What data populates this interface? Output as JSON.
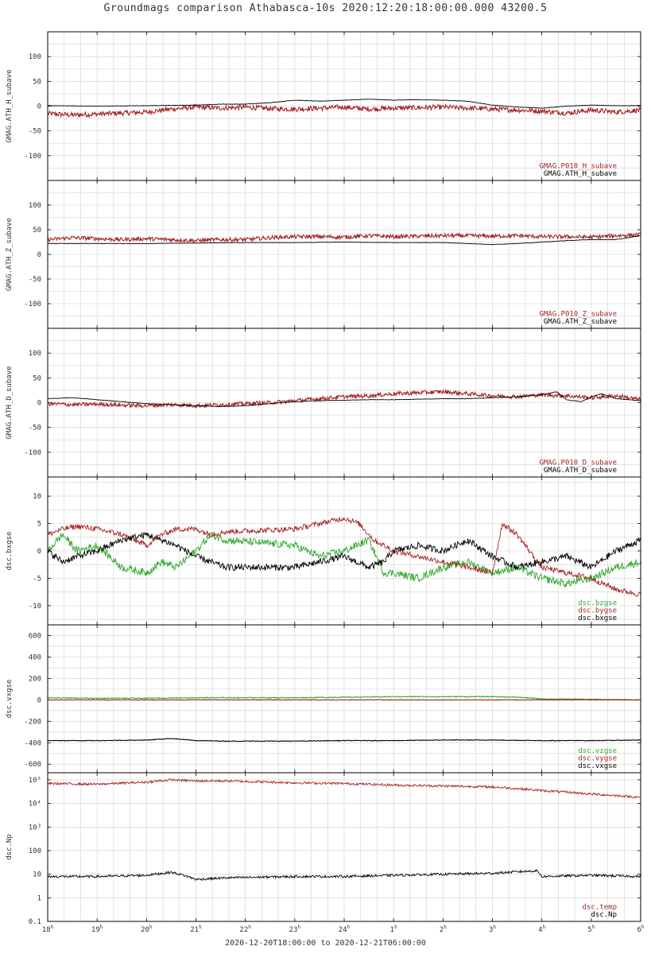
{
  "title": "Groundmags comparison Athabasca-10s 2020:12:20:18:00:00.000 43200.5",
  "footer": "2020-12-20T18:00:00 to 2020-12-21T06:00:00",
  "colors": {
    "black": "#000000",
    "red": "#a52222",
    "green": "#2ea82e",
    "grid": "#d0d0d0"
  },
  "chart_data": [
    {
      "type": "line",
      "ylabel": "GMAG.ATH_H_subave",
      "ylim": [
        -150,
        150
      ],
      "yticks": [
        100,
        50,
        0,
        -50,
        -100
      ],
      "ytick_labels": [
        "100",
        "50",
        "0",
        "-50",
        "-100"
      ],
      "legend_position": "bottom-right",
      "series": [
        {
          "name": "GMAG.P010_H_subave",
          "color": "#a52222",
          "x": [
            18,
            18.5,
            19,
            19.5,
            20,
            20.5,
            21,
            21.5,
            22,
            22.5,
            23,
            23.5,
            24,
            24.5,
            25,
            25.5,
            26,
            26.5,
            27,
            27.5,
            28,
            28.5,
            29,
            29.5,
            30
          ],
          "y": [
            -15,
            -18,
            -16,
            -14,
            -12,
            -6,
            -2,
            -4,
            -2,
            -5,
            -6,
            -4,
            -2,
            -6,
            -4,
            -3,
            -2,
            -4,
            -6,
            -8,
            -10,
            -14,
            -8,
            -12,
            -8
          ],
          "noise": 5
        },
        {
          "name": "GMAG.ATH_H_subave",
          "color": "#000000",
          "x": [
            18,
            19,
            20,
            21,
            21.5,
            22,
            22.5,
            23,
            23.5,
            24,
            24.5,
            25,
            25.5,
            26,
            26.5,
            27,
            27.5,
            28,
            28.5,
            29,
            29.5,
            30
          ],
          "y": [
            1,
            0,
            1,
            2,
            4,
            4,
            7,
            12,
            10,
            12,
            14,
            12,
            13,
            12,
            10,
            2,
            -2,
            -4,
            0,
            2,
            1,
            1
          ],
          "noise": 0.5
        }
      ]
    },
    {
      "type": "line",
      "ylabel": "GMAG.ATH_Z_subave",
      "ylim": [
        -150,
        150
      ],
      "yticks": [
        100,
        50,
        0,
        -50,
        -100
      ],
      "ytick_labels": [
        "100",
        "50",
        "0",
        "-50",
        "-100"
      ],
      "legend_position": "bottom-right",
      "series": [
        {
          "name": "GMAG.P010_Z_subave",
          "color": "#a52222",
          "x": [
            18,
            18.5,
            19,
            19.5,
            20,
            20.5,
            21,
            21.5,
            22,
            22.5,
            23,
            23.5,
            24,
            24.5,
            25,
            25.5,
            26,
            26.5,
            27,
            27.5,
            28,
            28.5,
            29,
            29.5,
            30
          ],
          "y": [
            30,
            34,
            32,
            30,
            32,
            30,
            28,
            30,
            30,
            34,
            36,
            36,
            35,
            38,
            36,
            37,
            38,
            38,
            37,
            38,
            36,
            36,
            35,
            38,
            40
          ],
          "noise": 4
        },
        {
          "name": "GMAG.ATH_Z_subave",
          "color": "#000000",
          "x": [
            18,
            19,
            20,
            21,
            22,
            23,
            24,
            25,
            26,
            26.5,
            27,
            27.5,
            28,
            28.5,
            29,
            29.5,
            30
          ],
          "y": [
            22,
            22,
            22,
            23,
            24,
            24,
            25,
            24,
            24,
            22,
            20,
            22,
            25,
            28,
            30,
            30,
            38
          ],
          "noise": 0.4
        }
      ]
    },
    {
      "type": "line",
      "ylabel": "GMAG.ATH_D_subave",
      "ylim": [
        -150,
        150
      ],
      "yticks": [
        100,
        50,
        0,
        -50,
        -100
      ],
      "ytick_labels": [
        "100",
        "50",
        "0",
        "-50",
        "-100"
      ],
      "legend_position": "bottom-right",
      "series": [
        {
          "name": "GMAG.P010_D_subave",
          "color": "#a52222",
          "x": [
            18,
            18.5,
            19,
            19.5,
            20,
            20.5,
            21,
            21.5,
            22,
            22.5,
            23,
            23.5,
            24,
            24.5,
            25,
            25.5,
            26,
            26.5,
            27,
            27.5,
            28,
            28.5,
            29,
            29.5,
            30
          ],
          "y": [
            -2,
            -4,
            -3,
            -5,
            -6,
            -4,
            -6,
            -4,
            -2,
            0,
            4,
            8,
            12,
            14,
            18,
            20,
            22,
            18,
            14,
            12,
            16,
            14,
            10,
            14,
            6
          ],
          "noise": 4
        },
        {
          "name": "GMAG.ATH_D_subave",
          "color": "#000000",
          "x": [
            18,
            18.5,
            19,
            19.5,
            20,
            20.5,
            21,
            21.5,
            22,
            22.5,
            23,
            23.5,
            24,
            24.5,
            25,
            25.5,
            26,
            26.5,
            27,
            27.5,
            28,
            28.3,
            28.5,
            28.8,
            29,
            29.2,
            29.5,
            30
          ],
          "y": [
            8,
            10,
            6,
            2,
            -2,
            -4,
            -6,
            -8,
            -6,
            -2,
            2,
            4,
            5,
            6,
            6,
            7,
            8,
            8,
            10,
            12,
            16,
            22,
            6,
            2,
            12,
            18,
            8,
            4
          ],
          "noise": 0.4
        }
      ]
    },
    {
      "type": "line",
      "ylabel": "dsc.bxgse",
      "ylim": [
        -13.5,
        13.5
      ],
      "yticks": [
        10,
        5,
        0,
        -5,
        -10
      ],
      "ytick_labels": [
        "10",
        "5",
        "0",
        "-5",
        "-10"
      ],
      "legend_position": "bottom-right",
      "series": [
        {
          "name": "dsc.bzgse",
          "color": "#2ea82e",
          "x": [
            18,
            18.3,
            18.6,
            19,
            19.5,
            20,
            20.3,
            20.6,
            21,
            21.3,
            21.6,
            23,
            23.5,
            24,
            24.5,
            24.8,
            25,
            25.5,
            26,
            26.5,
            27,
            27.5,
            28,
            28.5,
            29,
            29.5,
            30
          ],
          "y": [
            0,
            3,
            0,
            1,
            -3,
            -4,
            -2,
            -3,
            0,
            3,
            2,
            1,
            -1,
            0,
            2,
            -4,
            -4,
            -5,
            -3,
            -2,
            -4,
            -3,
            -5,
            -6,
            -5,
            -3,
            -2
          ],
          "noise": 0.7
        },
        {
          "name": "dsc.bygse",
          "color": "#a52222",
          "x": [
            18,
            18.3,
            18.6,
            19,
            19.5,
            20,
            20.3,
            20.6,
            21,
            21.3,
            21.6,
            23,
            23.5,
            24,
            24.3,
            24.6,
            24.8,
            25,
            25.5,
            26,
            26.5,
            27,
            27.2,
            27.5,
            28,
            28.5,
            29,
            29.5,
            30
          ],
          "y": [
            3,
            4,
            4.5,
            4,
            3,
            1,
            3,
            4,
            4,
            3,
            3.5,
            4,
            5,
            6,
            5,
            2,
            1,
            0,
            -1,
            -2,
            -3,
            -4,
            5,
            3,
            -3,
            -4,
            -5,
            -7,
            -8
          ],
          "noise": 0.5
        },
        {
          "name": "dsc.bxgse",
          "color": "#000000",
          "x": [
            18,
            18.3,
            18.6,
            19,
            19.5,
            20,
            20.3,
            20.6,
            21,
            21.3,
            21.6,
            23,
            23.5,
            24,
            24.5,
            24.8,
            25,
            25.5,
            26,
            26.5,
            27,
            27.5,
            28,
            28.5,
            29,
            29.5,
            30
          ],
          "y": [
            0,
            -2,
            -1,
            0,
            2,
            3,
            2,
            1,
            -1,
            -2,
            -3,
            -3,
            -2,
            -1,
            -3,
            -2,
            0,
            1,
            0,
            2,
            -1,
            -3,
            -2,
            -1,
            -3,
            0,
            2
          ],
          "noise": 0.6
        }
      ]
    },
    {
      "type": "line",
      "ylabel": "dsc.vxgse",
      "ylim": [
        -680,
        700
      ],
      "yticks": [
        600,
        400,
        200,
        0,
        -200,
        -400,
        -600
      ],
      "ytick_labels": [
        "600",
        "400",
        "200",
        "0",
        "-200",
        "-400",
        "-600"
      ],
      "legend_position": "bottom-right",
      "series": [
        {
          "name": "dsc.vzgse",
          "color": "#2ea82e",
          "x": [
            18,
            19,
            20,
            21,
            21.6,
            23,
            24,
            25,
            26,
            27,
            27.5,
            28,
            29,
            30
          ],
          "y": [
            20,
            15,
            15,
            20,
            20,
            20,
            25,
            30,
            30,
            30,
            25,
            10,
            5,
            0
          ],
          "noise": 4
        },
        {
          "name": "dsc.vygse",
          "color": "#a52222",
          "x": [
            18,
            19,
            20,
            21,
            21.6,
            23,
            24,
            25,
            26,
            27,
            28,
            29,
            30
          ],
          "y": [
            0,
            0,
            0,
            0,
            0,
            0,
            0,
            0,
            0,
            0,
            0,
            0,
            0
          ],
          "noise": 3
        },
        {
          "name": "dsc.vxgse",
          "color": "#000000",
          "x": [
            18,
            19,
            20,
            20.5,
            21,
            21.6,
            23,
            24,
            25,
            26,
            27,
            28,
            29,
            30
          ],
          "y": [
            -380,
            -380,
            -375,
            -360,
            -380,
            -385,
            -385,
            -380,
            -380,
            -375,
            -375,
            -380,
            -380,
            -375
          ],
          "noise": 3
        }
      ]
    },
    {
      "type": "line",
      "ylabel": "dsc.Np",
      "yscale": "log",
      "ylim": [
        0.1,
        200000
      ],
      "yticks": [
        100000,
        10000,
        1000,
        100,
        10,
        1,
        0.1
      ],
      "ytick_labels": [
        "10⁵",
        "10⁴",
        "10³",
        "100",
        "10",
        "1",
        "0.1"
      ],
      "legend_position": "bottom-right",
      "series": [
        {
          "name": "dsc.temp",
          "color": "#a52222",
          "x": [
            18,
            19,
            20,
            20.5,
            21,
            21.6,
            23,
            24,
            25,
            26,
            27,
            28,
            29,
            30
          ],
          "y": [
            70000,
            65000,
            80000,
            100000,
            90000,
            90000,
            75000,
            70000,
            60000,
            55000,
            50000,
            35000,
            25000,
            18000
          ],
          "noise": 0.05
        },
        {
          "name": "dsc.Np",
          "color": "#000000",
          "x": [
            18,
            19,
            20,
            20.5,
            21,
            21.6,
            23,
            24,
            25,
            26,
            27,
            27.9,
            28,
            29,
            30
          ],
          "y": [
            8,
            8,
            9,
            12,
            6,
            7,
            8,
            8,
            9,
            10,
            11,
            14,
            8,
            9,
            8
          ],
          "noise": 0.05
        }
      ]
    }
  ],
  "x_axis": {
    "xlim": [
      18,
      30
    ],
    "ticks": [
      18,
      19,
      20,
      21,
      22,
      23,
      24,
      25,
      26,
      27,
      28,
      29,
      30
    ],
    "tick_labels": [
      {
        "num": "18",
        "sup": "h"
      },
      {
        "num": "19",
        "sup": "h"
      },
      {
        "num": "20",
        "sup": "h"
      },
      {
        "num": "21",
        "sup": "h"
      },
      {
        "num": "22",
        "sup": "h"
      },
      {
        "num": "23",
        "sup": "h"
      },
      {
        "num": "24",
        "sup": "h"
      },
      {
        "num": "1",
        "sup": "h"
      },
      {
        "num": "2",
        "sup": "h"
      },
      {
        "num": "3",
        "sup": "h"
      },
      {
        "num": "4",
        "sup": "h"
      },
      {
        "num": "5",
        "sup": "h"
      },
      {
        "num": "6",
        "sup": "h"
      }
    ]
  }
}
